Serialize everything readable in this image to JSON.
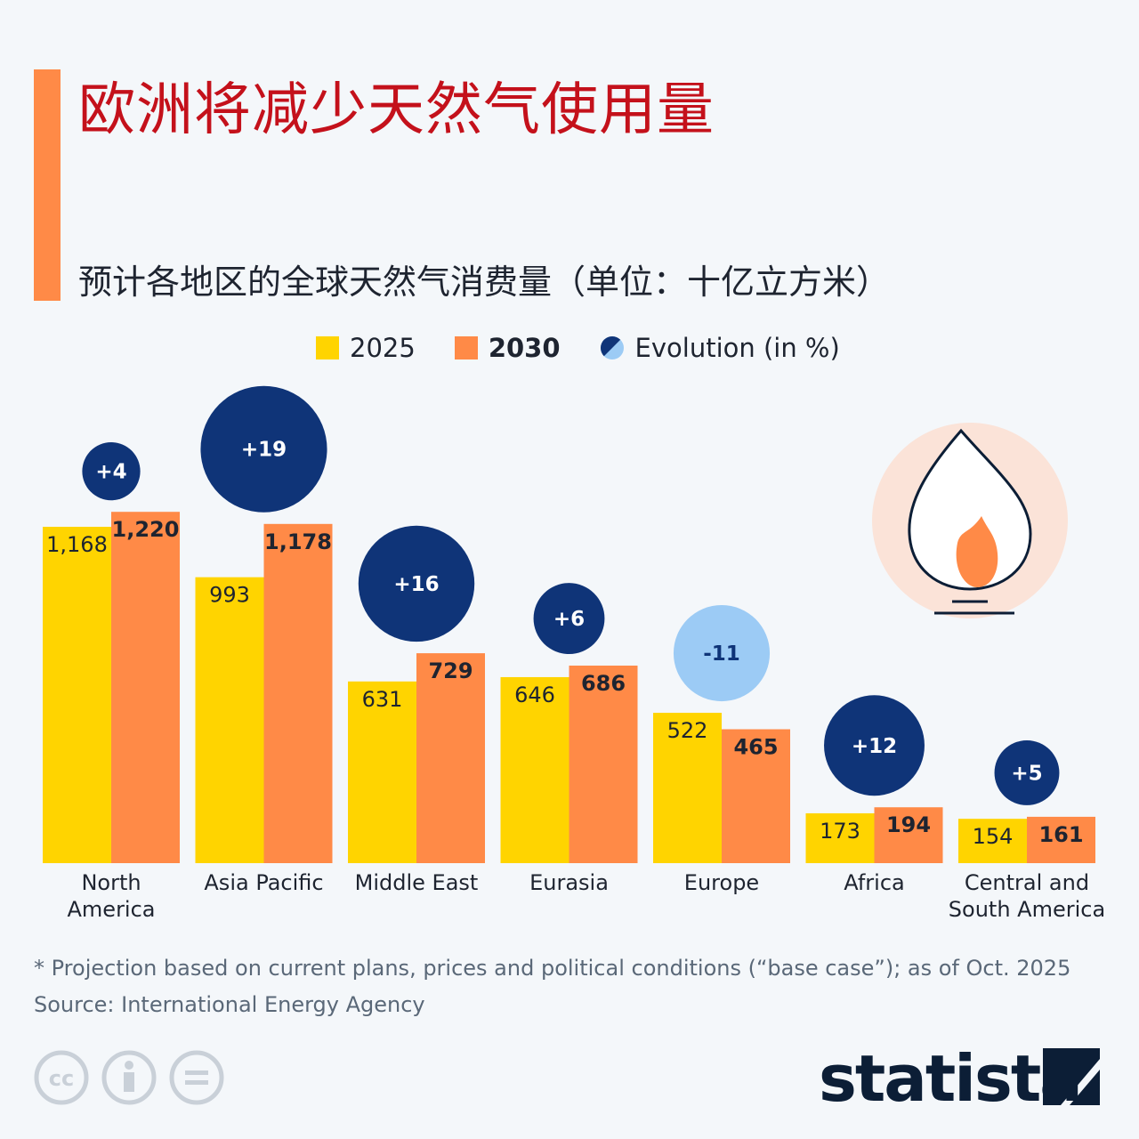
{
  "title": "欧洲将减少天然气使用量",
  "subtitle": "预计各地区的全球天然气消费量（单位：十亿立方米）",
  "legend": {
    "s2025": "2025",
    "s2030": "2030",
    "evolution": "Evolution (in %)"
  },
  "footnote": "* Projection based on current plans, prices and political conditions (“base case”); as of Oct. 2025",
  "source": "Source: International Energy Agency",
  "brand": "statista",
  "colors": {
    "y2025": "#ffd400",
    "y2030": "#ff8a47",
    "positive": "#0f3478",
    "negative": "#9ccbf5"
  },
  "chart_data": {
    "type": "bar",
    "categories": [
      [
        "North",
        "America"
      ],
      [
        "Asia Pacific"
      ],
      [
        "Middle East"
      ],
      [
        "Eurasia"
      ],
      [
        "Europe"
      ],
      [
        "Africa"
      ],
      [
        "Central and",
        "South America"
      ]
    ],
    "series": [
      {
        "name": "2025",
        "values": [
          1168,
          993,
          631,
          646,
          522,
          173,
          154
        ],
        "labels": [
          "1,168",
          "993",
          "631",
          "646",
          "522",
          "173",
          "154"
        ]
      },
      {
        "name": "2030",
        "values": [
          1220,
          1178,
          729,
          686,
          465,
          194,
          161
        ],
        "labels": [
          "1,220",
          "1,178",
          "729",
          "686",
          "465",
          "194",
          "161"
        ]
      }
    ],
    "evolution": {
      "name": "Evolution (in %)",
      "values": [
        4,
        19,
        16,
        6,
        -11,
        12,
        5
      ],
      "labels": [
        "+4",
        "+19",
        "+16",
        "+6",
        "-11",
        "+12",
        "+5"
      ]
    },
    "grid": false,
    "legend_position": "top"
  }
}
